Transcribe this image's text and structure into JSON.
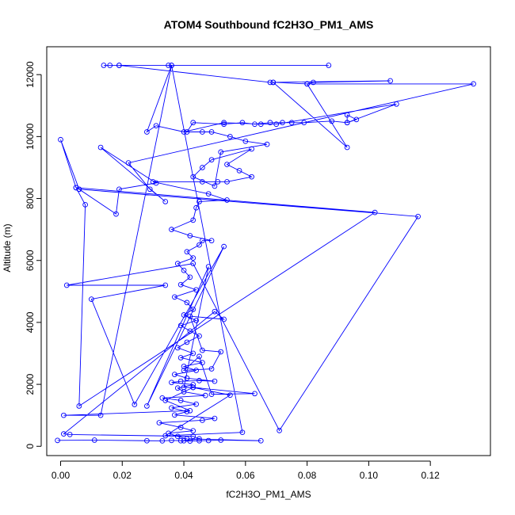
{
  "chart_data": {
    "type": "line",
    "title": "ATOM4 Southbound fC2H3O_PM1_AMS",
    "xlabel": "fC2H3O_PM1_AMS",
    "ylabel": "Altitude (m)",
    "xlim": [
      -0.0045,
      0.1395
    ],
    "ylim": [
      -300,
      12900
    ],
    "x_ticks": [
      0.0,
      0.02,
      0.04,
      0.06,
      0.08,
      0.1,
      0.12
    ],
    "x_tick_labels": [
      "0.00",
      "0.02",
      "0.04",
      "0.06",
      "0.08",
      "0.10",
      "0.12"
    ],
    "y_ticks": [
      0,
      2000,
      4000,
      6000,
      8000,
      10000,
      12000
    ],
    "y_tick_labels": [
      "0",
      "2000",
      "4000",
      "6000",
      "8000",
      "10000",
      "12000"
    ],
    "grid": false,
    "marker": "open-circle",
    "line_color": "#0000ff",
    "point_color": "#0000ff",
    "series": [
      {
        "points": [
          [
            -0.001,
            190
          ],
          [
            0.011,
            200
          ],
          [
            0.028,
            180
          ],
          [
            0.033,
            175
          ],
          [
            0.036,
            190
          ],
          [
            0.039,
            180
          ],
          [
            0.042,
            170
          ],
          [
            0.045,
            180
          ],
          [
            0.048,
            185
          ],
          [
            0.052,
            200
          ],
          [
            0.065,
            180
          ],
          [
            0.041,
            240
          ],
          [
            0.038,
            320
          ],
          [
            0.035,
            420
          ],
          [
            0.043,
            500
          ],
          [
            0.039,
            610
          ],
          [
            0.032,
            760
          ],
          [
            0.046,
            840
          ],
          [
            0.05,
            900
          ],
          [
            0.037,
            1010
          ],
          [
            0.041,
            1120
          ],
          [
            0.036,
            1240
          ],
          [
            0.044,
            1360
          ],
          [
            0.039,
            1480
          ],
          [
            0.033,
            1560
          ],
          [
            0.047,
            1640
          ],
          [
            0.04,
            1760
          ],
          [
            0.038,
            1880
          ],
          [
            0.043,
            1990
          ],
          [
            0.036,
            2060
          ],
          [
            0.039,
            2100
          ],
          [
            0.045,
            2120
          ],
          [
            0.05,
            2100
          ],
          [
            0.041,
            2200
          ],
          [
            0.037,
            2320
          ],
          [
            0.044,
            2450
          ],
          [
            0.04,
            2580
          ],
          [
            0.046,
            2700
          ],
          [
            0.039,
            2860
          ],
          [
            0.043,
            3000
          ],
          [
            0.038,
            3180
          ],
          [
            0.041,
            3360
          ],
          [
            0.045,
            3560
          ],
          [
            0.042,
            3720
          ],
          [
            0.039,
            3900
          ],
          [
            0.044,
            4060
          ],
          [
            0.04,
            4240
          ],
          [
            0.043,
            4420
          ],
          [
            0.041,
            4640
          ],
          [
            0.037,
            4820
          ],
          [
            0.044,
            5050
          ],
          [
            0.039,
            5220
          ],
          [
            0.042,
            5460
          ],
          [
            0.04,
            5680
          ],
          [
            0.038,
            5900
          ],
          [
            0.043,
            6080
          ],
          [
            0.041,
            6280
          ],
          [
            0.045,
            6500
          ],
          [
            0.046,
            6640
          ],
          [
            0.049,
            6640
          ],
          [
            0.042,
            6800
          ],
          [
            0.036,
            7000
          ],
          [
            0.043,
            7300
          ],
          [
            0.044,
            7700
          ],
          [
            0.045,
            7900
          ],
          [
            0.054,
            7950
          ],
          [
            0.048,
            8150
          ],
          [
            0.03,
            8540
          ],
          [
            0.046,
            8540
          ],
          [
            0.051,
            8540
          ],
          [
            0.054,
            8540
          ],
          [
            0.062,
            8700
          ],
          [
            0.058,
            8900
          ],
          [
            0.054,
            9100
          ],
          [
            0.062,
            9600
          ],
          [
            0.049,
            9250
          ],
          [
            0.046,
            9000
          ],
          [
            0.043,
            8700
          ],
          [
            0.05,
            8400
          ],
          [
            0.052,
            9500
          ],
          [
            0.067,
            9750
          ],
          [
            0.06,
            9850
          ],
          [
            0.055,
            10000
          ],
          [
            0.049,
            10150
          ],
          [
            0.046,
            10150
          ],
          [
            0.041,
            10150
          ],
          [
            0.043,
            10450
          ],
          [
            0.053,
            10400
          ],
          [
            0.059,
            10450
          ],
          [
            0.063,
            10400
          ],
          [
            0.068,
            10450
          ],
          [
            0.072,
            10450
          ],
          [
            0.075,
            10450
          ],
          [
            0.079,
            10450
          ],
          [
            0.088,
            10500
          ],
          [
            0.093,
            10450
          ],
          [
            0.096,
            10550
          ],
          [
            0.093,
            10700
          ],
          [
            0.093,
            10450
          ],
          [
            0.109,
            11050
          ],
          [
            0.07,
            10400
          ],
          [
            0.065,
            10400
          ],
          [
            0.053,
            10450
          ],
          [
            0.04,
            10150
          ],
          [
            0.031,
            10350
          ],
          [
            0.028,
            10150
          ],
          [
            0.036,
            12300
          ],
          [
            0.014,
            12300
          ],
          [
            0.016,
            12300
          ],
          [
            0.019,
            12300
          ],
          [
            0.035,
            12300
          ],
          [
            0.087,
            12300
          ],
          [
            0.019,
            12300
          ],
          [
            0.068,
            11750
          ],
          [
            0.069,
            11750
          ],
          [
            0.08,
            11700
          ],
          [
            0.082,
            11750
          ],
          [
            0.107,
            11800
          ],
          [
            0.069,
            11750
          ],
          [
            0.093,
            9650
          ],
          [
            0.08,
            11700
          ],
          [
            0.134,
            11700
          ],
          [
            0.022,
            9150
          ],
          [
            0.029,
            8300
          ],
          [
            0.034,
            7900
          ],
          [
            0.013,
            9650
          ],
          [
            0.031,
            8500
          ],
          [
            0.019,
            8300
          ],
          [
            0.018,
            7500
          ],
          [
            0.006,
            8300
          ],
          [
            0.005,
            8350
          ],
          [
            0.008,
            7800
          ],
          [
            0.006,
            1300
          ],
          [
            0.102,
            7550
          ],
          [
            0.005,
            8350
          ],
          [
            0.0,
            9900
          ],
          [
            0.006,
            8300
          ],
          [
            0.116,
            7420
          ],
          [
            0.071,
            510
          ],
          [
            0.043,
            5900
          ],
          [
            0.002,
            5200
          ],
          [
            0.034,
            5200
          ],
          [
            0.01,
            4750
          ],
          [
            0.024,
            1350
          ],
          [
            0.053,
            6450
          ],
          [
            0.028,
            1300
          ],
          [
            0.048,
            5800
          ],
          [
            0.04,
            1900
          ],
          [
            0.043,
            1900
          ],
          [
            0.034,
            1480
          ],
          [
            0.042,
            1150
          ],
          [
            0.001,
            1000
          ],
          [
            0.013,
            1000
          ],
          [
            0.036,
            12300
          ],
          [
            0.059,
            450
          ],
          [
            0.034,
            340
          ],
          [
            0.055,
            1650
          ],
          [
            0.043,
            1900
          ],
          [
            0.063,
            1700
          ],
          [
            0.049,
            1680
          ],
          [
            0.045,
            2900
          ],
          [
            0.04,
            2450
          ],
          [
            0.049,
            2500
          ],
          [
            0.052,
            3050
          ],
          [
            0.046,
            3100
          ],
          [
            0.042,
            4200
          ],
          [
            0.053,
            4100
          ],
          [
            0.05,
            4350
          ],
          [
            0.001,
            400
          ],
          [
            0.003,
            380
          ],
          [
            0.043,
            320
          ],
          [
            0.045,
            240
          ],
          [
            0.04,
            180
          ]
        ]
      }
    ]
  }
}
